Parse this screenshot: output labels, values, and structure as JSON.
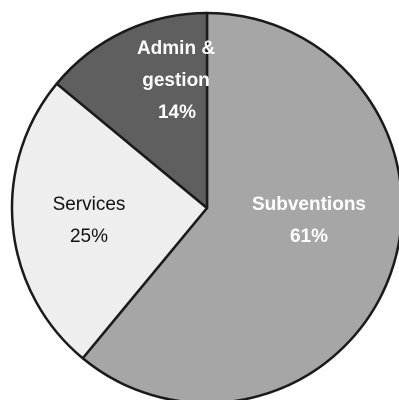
{
  "chart_data": {
    "type": "pie",
    "title": "",
    "slices": [
      {
        "name": "Subventions",
        "value": 61,
        "value_label": "61%",
        "color": "#a6a6a6",
        "text_color": "#ffffff",
        "bold": true
      },
      {
        "name": "Services",
        "value": 25,
        "value_label": "25%",
        "color": "#eeeeee",
        "text_color": "#111111",
        "bold": false
      },
      {
        "name": "Admin & gestion",
        "value": 14,
        "value_label": "14%",
        "color": "#5f5f5f",
        "text_color": "#ffffff",
        "bold": true
      }
    ],
    "start_angle": "12 o'clock",
    "direction": "clockwise",
    "legend": "none",
    "labels": "inside slices"
  }
}
